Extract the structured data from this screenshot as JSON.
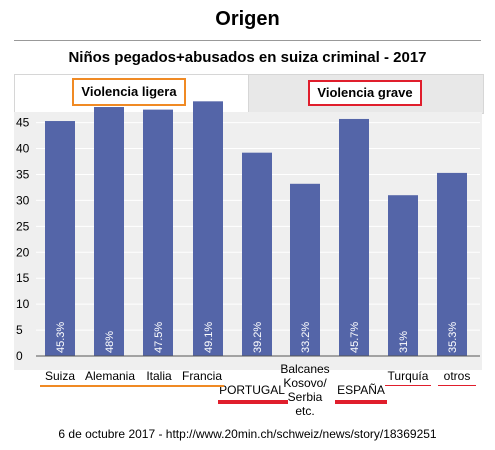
{
  "header": {
    "title": "Origen",
    "subtitle": "Niños pegados+abusados en suiza criminal - 2017"
  },
  "tabs": [
    {
      "label": "Violencia ligera",
      "active": true
    },
    {
      "label": "Violencia grave",
      "active": false
    }
  ],
  "colors": {
    "bar": "#5465a8",
    "orange_highlight": "#f08a24",
    "red_highlight": "#e01e2c",
    "plot_bg": "#efefef"
  },
  "chart_data": {
    "type": "bar",
    "categories": [
      "Suiza",
      "Alemania",
      "Italia",
      "Francia",
      "PORTUGAL",
      "Balcanes Kosovo/ Serbia etc.",
      "ESPAÑA",
      "Turquía",
      "otros"
    ],
    "values": [
      45.3,
      48,
      47.5,
      49.1,
      39.2,
      33.2,
      45.7,
      31,
      35.3
    ],
    "data_labels": [
      "45.3%",
      "48%",
      "47.5%",
      "49.1%",
      "39.2%",
      "33.2%",
      "45.7%",
      "31%",
      "35.3%"
    ],
    "yticks": [
      0,
      5,
      10,
      15,
      20,
      25,
      30,
      35,
      40,
      45
    ],
    "ylim": [
      0,
      50
    ],
    "grid": true
  },
  "footer": {
    "source": "6 de octubre 2017 - http://www.20min.ch/schweiz/news/story/18369251"
  }
}
